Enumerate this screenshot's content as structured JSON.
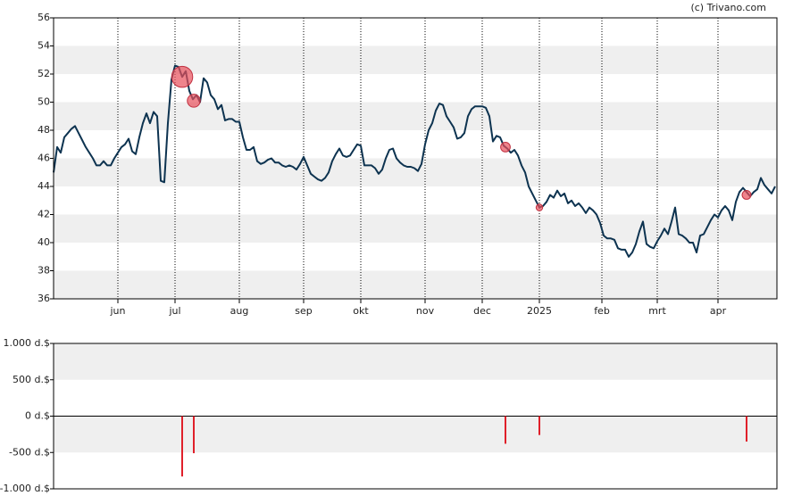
{
  "chart_data": [
    {
      "type": "line",
      "credit": "(c) Trivano.com",
      "x": [
        0,
        1,
        2,
        3,
        4,
        5,
        6,
        7,
        8,
        9,
        10,
        11,
        12,
        13,
        14,
        15,
        16,
        17,
        18,
        19,
        20,
        21,
        22,
        23,
        24,
        25,
        26,
        27,
        28,
        29,
        30,
        31,
        32,
        33,
        34,
        35,
        36,
        37,
        38,
        39,
        40,
        41,
        42,
        43,
        44,
        45,
        46,
        47,
        48,
        49,
        50,
        51,
        52,
        53,
        54,
        55,
        56,
        57,
        58,
        59,
        60,
        61,
        62,
        63,
        64,
        65,
        66,
        67,
        68,
        69,
        70,
        71,
        72,
        73,
        74,
        75,
        76,
        77,
        78,
        79,
        80,
        81,
        82,
        83,
        84,
        85,
        86,
        87,
        88,
        89,
        90,
        91,
        92,
        93,
        94,
        95,
        96,
        97,
        98,
        99,
        100,
        101,
        102,
        103,
        104,
        105,
        106,
        107,
        108,
        109,
        110,
        111,
        112,
        113,
        114,
        115,
        116,
        117,
        118,
        119,
        120,
        121,
        122,
        123,
        124,
        125,
        126,
        127,
        128,
        129,
        130,
        131,
        132,
        133,
        134,
        135,
        136,
        137,
        138,
        139,
        140,
        141,
        142,
        143,
        144,
        145,
        146,
        147,
        148,
        149,
        150,
        151,
        152,
        153,
        154,
        155,
        156,
        157,
        158,
        159,
        160,
        161,
        162,
        163,
        164,
        165,
        166,
        167,
        168,
        169,
        170,
        171,
        172,
        173,
        174,
        175,
        176,
        177,
        178,
        179,
        180,
        181,
        182,
        183,
        184,
        185,
        186,
        187,
        188,
        189,
        190,
        191,
        192,
        193,
        194,
        195,
        196,
        197,
        198,
        199,
        200,
        201,
        202
      ],
      "series": [
        {
          "color": "#0d3350",
          "values": [
            45.0,
            46.8,
            46.4,
            47.5,
            47.8,
            48.1,
            48.3,
            47.8,
            47.3,
            46.8,
            46.4,
            46.0,
            45.5,
            45.5,
            45.8,
            45.5,
            45.5,
            46.0,
            46.4,
            46.8,
            47.0,
            47.4,
            46.5,
            46.3,
            47.5,
            48.5,
            49.2,
            48.5,
            49.3,
            49.0,
            44.4,
            44.3,
            48.5,
            51.6,
            52.6,
            52.5,
            51.8,
            52.2,
            50.8,
            50.2,
            50.5,
            50.0,
            51.7,
            51.4,
            50.5,
            50.2,
            49.5,
            49.8,
            48.7,
            48.8,
            48.8,
            48.6,
            48.6,
            47.5,
            46.6,
            46.6,
            46.8,
            45.8,
            45.6,
            45.7,
            45.9,
            46.0,
            45.7,
            45.7,
            45.5,
            45.4,
            45.5,
            45.4,
            45.2,
            45.6,
            46.1,
            45.5,
            44.9,
            44.7,
            44.5,
            44.4,
            44.6,
            45.0,
            45.8,
            46.3,
            46.7,
            46.2,
            46.1,
            46.2,
            46.6,
            47.0,
            46.9,
            45.5,
            45.5,
            45.5,
            45.3,
            44.9,
            45.2,
            46.0,
            46.6,
            46.7,
            46.0,
            45.7,
            45.5,
            45.4,
            45.4,
            45.3,
            45.1,
            45.6,
            47.0,
            48.0,
            48.5,
            49.4,
            49.9,
            49.8,
            49.0,
            48.6,
            48.2,
            47.4,
            47.5,
            47.8,
            49.0,
            49.5,
            49.7,
            49.7,
            49.7,
            49.6,
            49.0,
            47.2,
            47.6,
            47.5,
            46.9,
            46.7,
            46.4,
            46.6,
            46.2,
            45.5,
            45.0,
            44.0,
            43.5,
            43.0,
            42.5,
            42.6,
            42.9,
            43.4,
            43.2,
            43.7,
            43.3,
            43.5,
            42.8,
            43.0,
            42.6,
            42.8,
            42.5,
            42.1,
            42.5,
            42.3,
            42.0,
            41.4,
            40.5,
            40.3,
            40.3,
            40.2,
            39.6,
            39.5,
            39.5,
            39.0,
            39.3,
            39.9,
            40.8,
            41.5,
            39.9,
            39.7,
            39.6,
            40.1,
            40.5,
            41.0,
            40.6,
            41.5,
            42.5,
            40.6,
            40.5,
            40.3,
            40.0,
            40.0,
            39.3,
            40.5,
            40.6,
            41.1,
            41.6,
            42.0,
            41.8,
            42.3,
            42.6,
            42.3,
            41.6,
            42.9,
            43.6,
            43.9,
            43.6,
            43.3,
            43.6,
            43.8,
            44.6,
            44.1,
            43.8,
            43.5,
            44.0
          ]
        }
      ],
      "markers": {
        "color": "#e8505b",
        "x": [
          36,
          39.25,
          126.5,
          136,
          194
        ],
        "values": [
          51.8,
          50.1,
          46.8,
          42.5,
          43.4
        ]
      },
      "xlim": [
        0,
        202.5
      ],
      "xticks": [
        {
          "value": 18,
          "label": "jun"
        },
        {
          "value": 34,
          "label": "jul"
        },
        {
          "value": 52,
          "label": "aug"
        },
        {
          "value": 70,
          "label": "sep"
        },
        {
          "value": 86,
          "label": "okt"
        },
        {
          "value": 104,
          "label": "nov"
        },
        {
          "value": 120,
          "label": "dec"
        },
        {
          "value": 136,
          "label": "2025"
        },
        {
          "value": 153.5,
          "label": "feb"
        },
        {
          "value": 169,
          "label": "mrt"
        },
        {
          "value": 186,
          "label": "apr"
        }
      ],
      "ylim": [
        36,
        56
      ],
      "yticks": [
        36,
        38,
        40,
        42,
        44,
        46,
        48,
        50,
        52,
        54,
        56
      ],
      "grid": true
    },
    {
      "type": "bar",
      "color": "#e0202a",
      "x": [
        36,
        39.25,
        126.5,
        136,
        194
      ],
      "values": [
        -830,
        -510,
        -380,
        -260,
        -350
      ],
      "xlim": [
        0,
        202.5
      ],
      "ylim": [
        -1000,
        1000
      ],
      "yticks": [
        {
          "value": -1000,
          "label": "-1.000 d.$"
        },
        {
          "value": -500,
          "label": "-500 d.$"
        },
        {
          "value": 0,
          "label": "0 d.$"
        },
        {
          "value": 500,
          "label": "500 d.$"
        },
        {
          "value": 1000,
          "label": "1.000 d.$"
        }
      ],
      "grid": true
    }
  ]
}
